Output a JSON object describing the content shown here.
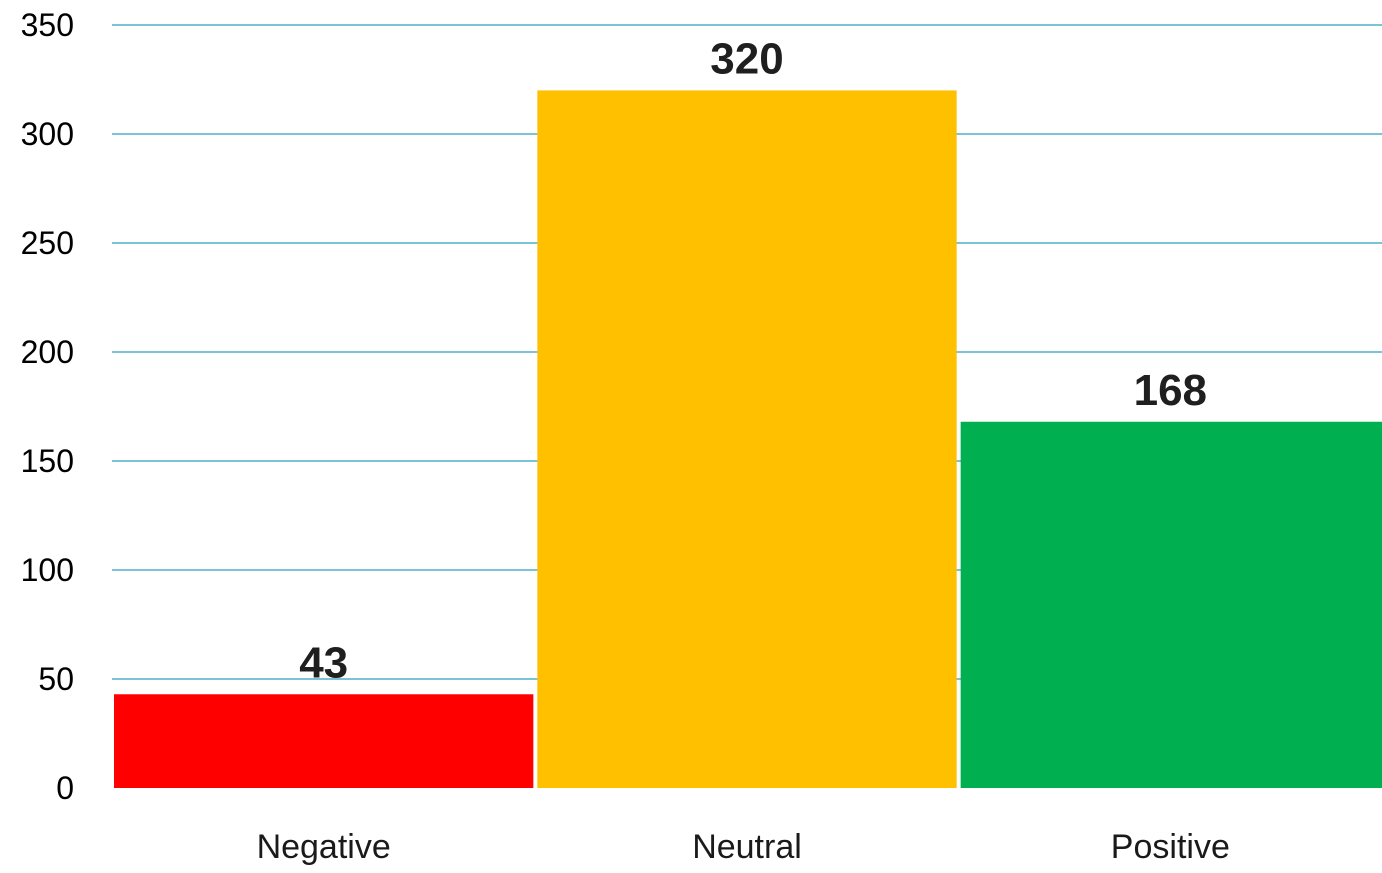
{
  "chart_data": {
    "type": "bar",
    "title": "",
    "xlabel": "",
    "ylabel": "",
    "categories": [
      "Negative",
      "Neutral",
      "Positive"
    ],
    "values": [
      43,
      320,
      168
    ],
    "data_labels": [
      "43",
      "320",
      "168"
    ],
    "colors": [
      "#ff0000",
      "#ffc000",
      "#00b050"
    ],
    "ylim": [
      0,
      350
    ],
    "yticks": [
      0,
      50,
      100,
      150,
      200,
      250,
      300,
      350
    ],
    "grid": true,
    "grid_color": "#2e9fc0",
    "legend": false
  }
}
